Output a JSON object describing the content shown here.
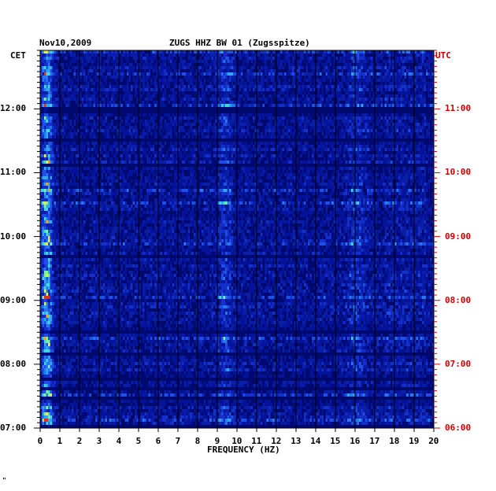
{
  "header": {
    "date": "Nov10,2009",
    "station": "ZUGS HHZ BW 01 (Zugsspitze)",
    "left_zone": "CET",
    "right_zone": "UTC",
    "corner_mark": "\""
  },
  "colors": {
    "background_blue": "#0a1ea8",
    "deep_blue": "#000a6e",
    "grid": "#000000",
    "utc_labels": "#cc0000"
  },
  "chart_data": {
    "type": "heatmap",
    "title": "ZUGS HHZ BW 01 (Zugsspitze)",
    "xlabel": "FREQUENCY (HZ)",
    "ylabel": "",
    "xlim": [
      0,
      20
    ],
    "x_ticks": [
      "0",
      "1",
      "2",
      "3",
      "4",
      "5",
      "6",
      "7",
      "8",
      "9",
      "10",
      "11",
      "12",
      "13",
      "14",
      "15",
      "16",
      "17",
      "18",
      "19",
      "20"
    ],
    "y_range_cet": [
      "07:00",
      "12:55"
    ],
    "y_ticks_cet": [
      "12:00",
      "11:00",
      "10:00",
      "09:00",
      "08:00",
      "07:00"
    ],
    "y_ticks_utc": [
      "11:00",
      "10:00",
      "09:00",
      "08:00",
      "07:00",
      "06:00"
    ],
    "grid": true,
    "features": [
      {
        "freq_range_hz": [
          0.2,
          0.8
        ],
        "description": "strong energy band"
      },
      {
        "freq_range_hz": [
          9.0,
          9.8
        ],
        "description": "recurring peaks"
      },
      {
        "freq_range_hz": [
          15.5,
          16.8
        ],
        "description": "intermittent energy"
      }
    ]
  }
}
